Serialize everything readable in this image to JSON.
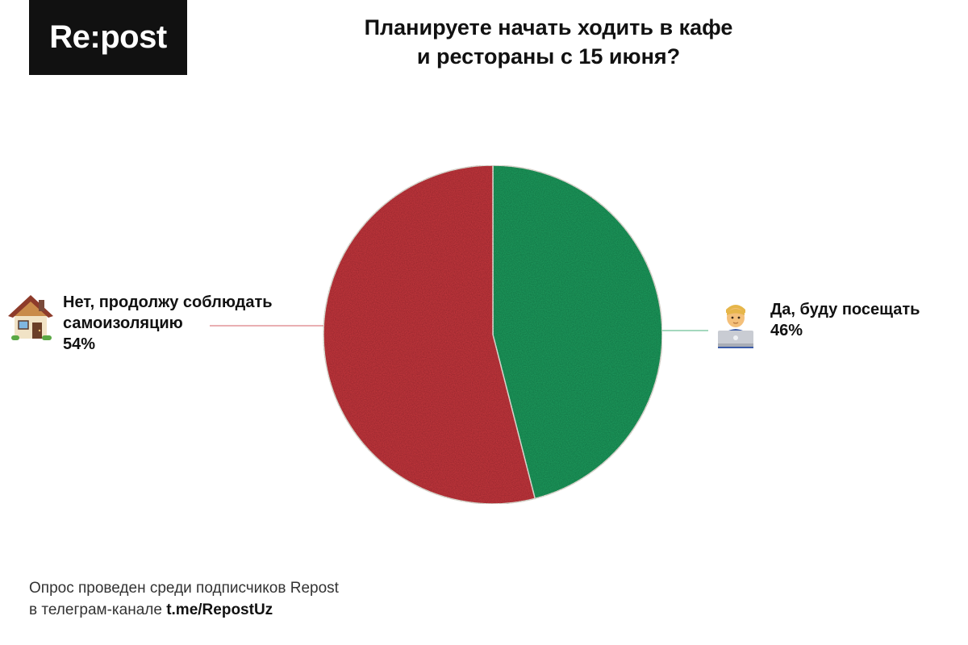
{
  "brand": {
    "logo_text": "Re:post"
  },
  "title": {
    "line1": "Планируете начать ходить в кафе",
    "line2": "и рестораны с 15 июня?"
  },
  "chart_data": {
    "type": "pie",
    "title": "Планируете начать ходить в кафе и рестораны с 15 июня?",
    "slices": [
      {
        "label": "Да, буду посещать",
        "value": 46,
        "value_label": "46%",
        "color": "#1e9e5f",
        "icon": "person-with-laptop-icon"
      },
      {
        "label": "Нет, продолжу соблюдать самоизоляцию",
        "value": 54,
        "value_label": "54%",
        "color": "#c9383f",
        "icon": "house-icon"
      }
    ]
  },
  "labels": {
    "yes": {
      "line1": "Да, буду посещать",
      "pct": "46%"
    },
    "no": {
      "line1": "Нет, продолжу соблюдать",
      "line2": "самоизоляцию",
      "pct": "54%"
    }
  },
  "footer": {
    "line1": "Опрос проведен среди подписчиков Repost",
    "line2_prefix": "в телеграм-канале ",
    "line2_link": "t.me/RepostUz"
  }
}
